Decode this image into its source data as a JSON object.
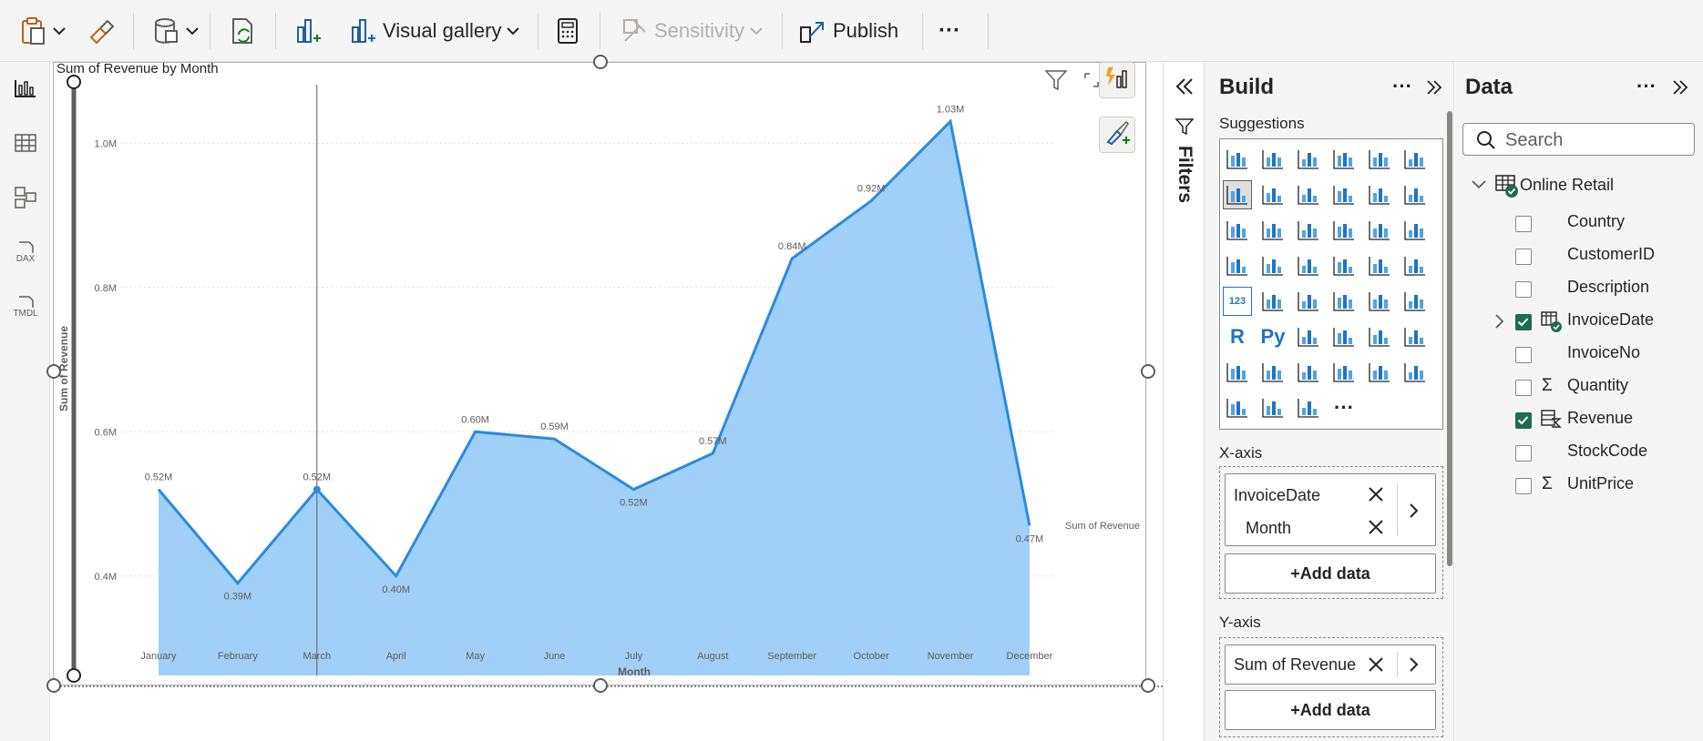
{
  "ribbon": {
    "visual_gallery_label": "Visual gallery",
    "sensitivity_label": "Sensitivity",
    "publish_label": "Publish",
    "more_label": "···"
  },
  "leftnav": {
    "items": [
      "report-view",
      "table-view",
      "model-view",
      "DAX",
      "TMDL"
    ],
    "dax_label": "DAX",
    "tmdl_label": "TMDL"
  },
  "chart_data": {
    "type": "area",
    "title": "Sum of Revenue by Month",
    "xlabel": "Month",
    "ylabel": "Sum of Revenue",
    "legend_label": "Sum of Revenue",
    "categories": [
      "January",
      "February",
      "March",
      "April",
      "May",
      "June",
      "July",
      "August",
      "September",
      "October",
      "November",
      "December"
    ],
    "series": [
      {
        "name": "Sum of Revenue",
        "values": [
          0.52,
          0.39,
          0.52,
          0.4,
          0.6,
          0.59,
          0.52,
          0.57,
          0.84,
          0.92,
          1.03,
          0.47
        ],
        "labels": [
          "0.52M",
          "0.39M",
          "0.52M",
          "0.40M",
          "0.60M",
          "0.59M",
          "0.52M",
          "0.57M",
          "0.84M",
          "0.92M",
          "1.03M",
          "0.47M"
        ]
      }
    ],
    "yticks": [
      0.4,
      0.6,
      0.8,
      1.0
    ],
    "ytick_labels": [
      "0.4M",
      "0.6M",
      "0.8M",
      "1.0M"
    ],
    "ylim": [
      0.3,
      1.1
    ],
    "grid": true,
    "highlight_category": "March",
    "color_fill": "#a0cff7",
    "color_line": "#2a8ae0"
  },
  "filters": {
    "label": "Filters"
  },
  "build": {
    "title": "Build",
    "suggestions_label": "Suggestions",
    "xaxis_label": "X-axis",
    "xaxis_field": "InvoiceDate",
    "xaxis_sub": "Month",
    "yaxis_label": "Y-axis",
    "yaxis_field": "Sum of Revenue",
    "add_data_label": "+Add data",
    "r_label": "R",
    "py_label": "Py",
    "kpi_label": "123",
    "more_visuals_label": "···"
  },
  "data": {
    "title": "Data",
    "search_placeholder": "Search",
    "table_name": "Online Retail",
    "fields": [
      {
        "name": "Country",
        "checked": false,
        "sigma": false
      },
      {
        "name": "CustomerID",
        "checked": false,
        "sigma": false
      },
      {
        "name": "Description",
        "checked": false,
        "sigma": false
      },
      {
        "name": "InvoiceDate",
        "checked": true,
        "sigma": false,
        "hierarchy": true
      },
      {
        "name": "InvoiceNo",
        "checked": false,
        "sigma": false
      },
      {
        "name": "Quantity",
        "checked": false,
        "sigma": true
      },
      {
        "name": "Revenue",
        "checked": true,
        "sigma": false,
        "measure": true
      },
      {
        "name": "StockCode",
        "checked": false,
        "sigma": false
      },
      {
        "name": "UnitPrice",
        "checked": false,
        "sigma": true
      }
    ]
  }
}
